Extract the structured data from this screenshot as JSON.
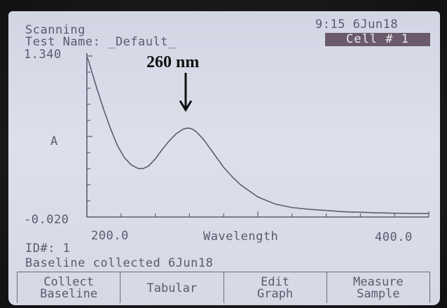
{
  "header": {
    "status": "Scanning",
    "test_name": "Test Name: _Default_",
    "time_date": "9:15 6Jun18",
    "cell": "Cell # 1"
  },
  "annotation": {
    "label": "260 nm"
  },
  "chart_data": {
    "type": "line",
    "ylabel": "A",
    "xlabel": "Wavelength",
    "xlim": [
      200.0,
      400.0
    ],
    "ylim": [
      -0.02,
      1.34
    ],
    "x_tick_labels": [
      "200.0",
      "400.0"
    ],
    "y_tick_labels": [
      "1.340",
      "-0.020"
    ],
    "series": [
      {
        "x": [
          200,
          201,
          203,
          206,
          210,
          214,
          218,
          222,
          226,
          230,
          233,
          236,
          240,
          244,
          248,
          252,
          256,
          258,
          260,
          262,
          264,
          268,
          272,
          276,
          280,
          285,
          290,
          300,
          310,
          320,
          330,
          340,
          350,
          360,
          370,
          380,
          390,
          400
        ],
        "y": [
          1.33,
          1.3,
          1.2,
          1.06,
          0.88,
          0.72,
          0.58,
          0.48,
          0.42,
          0.39,
          0.39,
          0.41,
          0.47,
          0.55,
          0.62,
          0.68,
          0.72,
          0.73,
          0.73,
          0.72,
          0.7,
          0.64,
          0.56,
          0.48,
          0.4,
          0.32,
          0.25,
          0.15,
          0.09,
          0.06,
          0.045,
          0.035,
          0.025,
          0.02,
          0.015,
          0.012,
          0.01,
          0.01
        ]
      }
    ]
  },
  "footer": {
    "id": "ID#: 1",
    "status": "Baseline collected 6Jun18"
  },
  "softkeys": [
    {
      "line1": "Collect",
      "line2": "Baseline"
    },
    {
      "line1": "Tabular",
      "line2": ""
    },
    {
      "line1": "Edit",
      "line2": "Graph"
    },
    {
      "line1": "Measure",
      "line2": "Sample"
    }
  ]
}
